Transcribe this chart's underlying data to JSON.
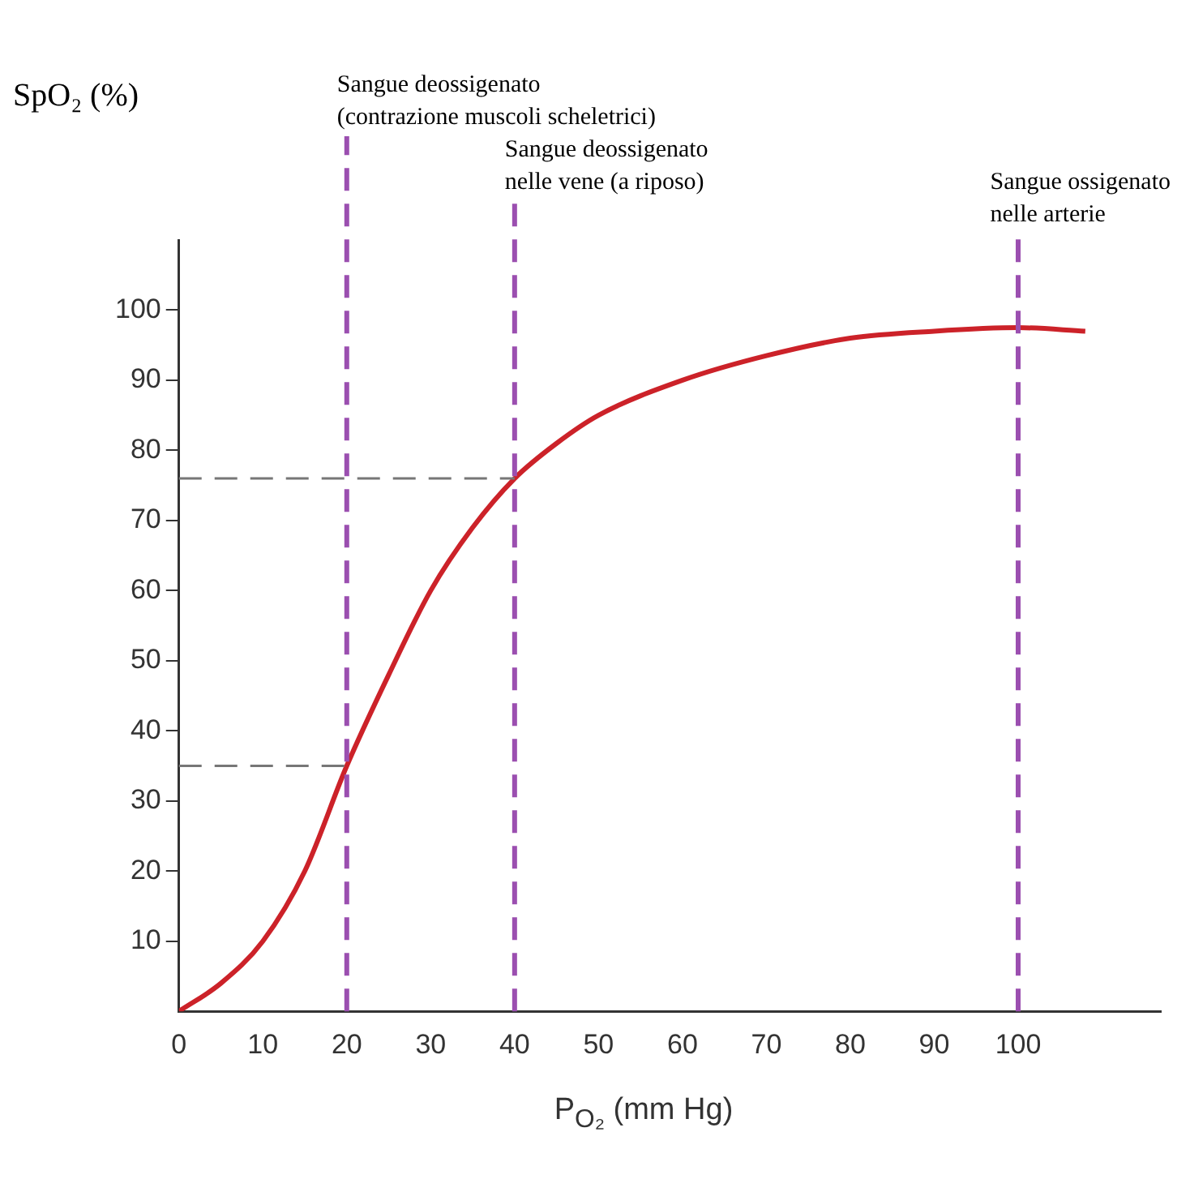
{
  "chart_data": {
    "type": "line",
    "xlabel": "P$_{O₂}$ (mm Hg)",
    "ylabel": "SpO₂ (%)",
    "xlim": [
      0,
      117
    ],
    "ylim": [
      0,
      110
    ],
    "xticks": [
      0,
      10,
      20,
      30,
      40,
      50,
      60,
      70,
      80,
      90,
      100
    ],
    "yticks": [
      10,
      20,
      30,
      40,
      50,
      60,
      70,
      80,
      90,
      100
    ],
    "grid": false,
    "legend": false,
    "marker": "none",
    "line_style": "solid",
    "series": [
      {
        "color": "#cc2229",
        "x": [
          0,
          5,
          10,
          15,
          20,
          25,
          30,
          35,
          40,
          45,
          50,
          60,
          70,
          80,
          90,
          100,
          108
        ],
        "values": [
          0,
          4,
          10,
          20,
          35,
          48,
          60,
          69,
          76,
          81,
          85,
          90,
          93.5,
          96,
          97,
          97.5,
          97
        ]
      }
    ],
    "ref_lines": [
      {
        "axis": "x",
        "value": 20,
        "label": "Sangue deossigenato\n(contrazione muscoli scheletrici)",
        "color": "#9b4fb0",
        "line_style": "dashed"
      },
      {
        "axis": "x",
        "value": 40,
        "label": "Sangue deossigenato\nnelle vene (a riposo)",
        "color": "#9b4fb0",
        "line_style": "dashed"
      },
      {
        "axis": "x",
        "value": 100,
        "label": "Sangue ossigenato\nnelle arterie",
        "color": "#9b4fb0",
        "line_style": "dashed"
      },
      {
        "axis": "y",
        "value": 76,
        "color": "#777777",
        "line_style": "dashed"
      },
      {
        "axis": "y",
        "value": 35,
        "color": "#777777",
        "line_style": "dashed"
      }
    ]
  }
}
